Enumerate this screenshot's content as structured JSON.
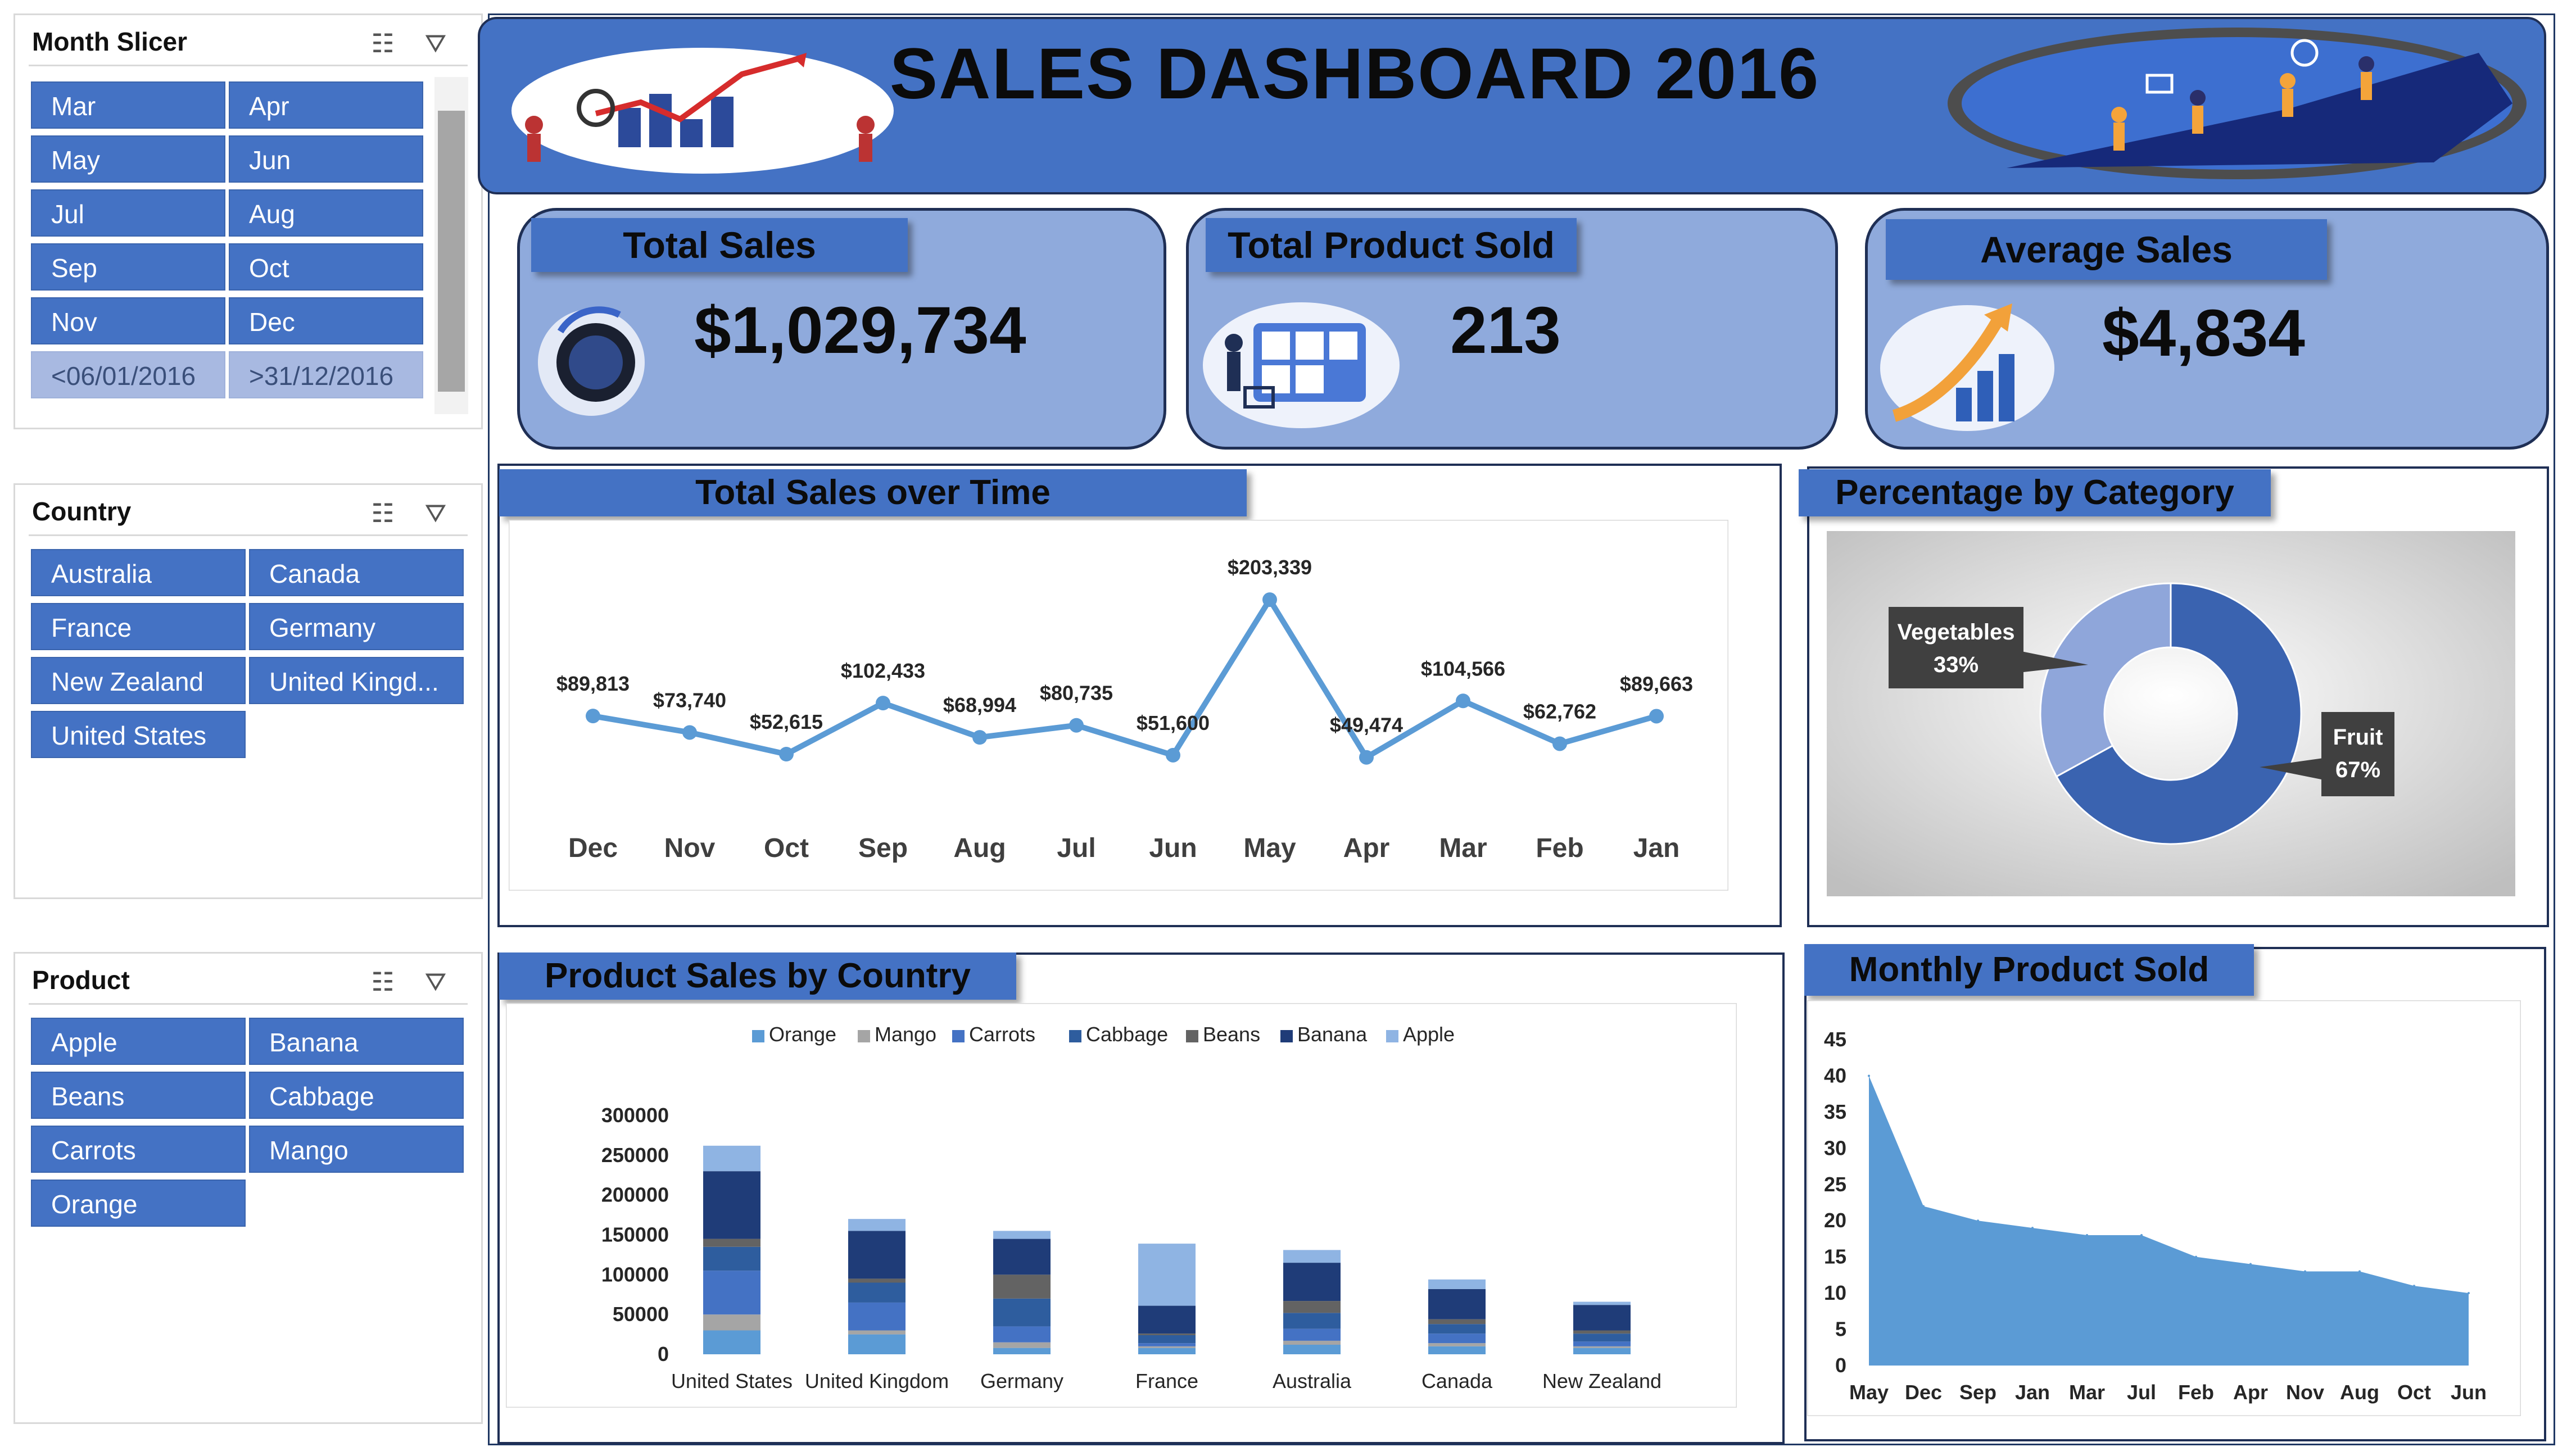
{
  "month_slicer": {
    "title": "Month Slicer",
    "items": [
      "Mar",
      "Apr",
      "May",
      "Jun",
      "Jul",
      "Aug",
      "Sep",
      "Oct",
      "Nov",
      "Dec",
      "<06/01/2016",
      ">31/12/2016"
    ]
  },
  "country_slicer": {
    "title": "Country",
    "items": [
      "Australia",
      "Canada",
      "France",
      "Germany",
      "New Zealand",
      "United Kingd...",
      "United States"
    ]
  },
  "product_slicer": {
    "title": "Product",
    "items": [
      "Apple",
      "Banana",
      "Beans",
      "Cabbage",
      "Carrots",
      "Mango",
      "Orange"
    ]
  },
  "icons": {
    "multiselect": "multi-select-icon",
    "clear_filter": "clear-filter-icon"
  },
  "header": {
    "title": "SALES DASHBOARD 2016"
  },
  "kpis": {
    "total_sales": {
      "label": "Total Sales",
      "value": "$1,029,734"
    },
    "total_product_sold": {
      "label": "Total Product Sold",
      "value": "213"
    },
    "average_sales": {
      "label": "Average Sales",
      "value": "$4,834"
    }
  },
  "colors": {
    "primary": "#4472c4",
    "light": "#8faadc",
    "dark_border": "#1f2f55",
    "line": "#5b9bd5"
  },
  "chart_data": [
    {
      "id": "total_sales_over_time",
      "type": "line",
      "title": "Total Sales over Time",
      "categories": [
        "Dec",
        "Nov",
        "Oct",
        "Sep",
        "Aug",
        "Jul",
        "Jun",
        "May",
        "Apr",
        "Mar",
        "Feb",
        "Jan"
      ],
      "values": [
        89813,
        73740,
        52615,
        102433,
        68994,
        80735,
        51600,
        203339,
        49474,
        104566,
        62762,
        89663
      ],
      "data_labels": [
        "$89,813",
        "$73,740",
        "$52,615",
        "$102,433",
        "$68,994",
        "$80,735",
        "$51,600",
        "$203,339",
        "$49,474",
        "$104,566",
        "$62,762",
        "$89,663"
      ],
      "grid": false
    },
    {
      "id": "percentage_by_category",
      "type": "pie",
      "title": "Percentage by Category",
      "labels": [
        "Fruit",
        "Vegetables"
      ],
      "values": [
        67,
        33
      ],
      "percent_labels": [
        "67%",
        "33%"
      ],
      "colors": [
        "#3a63b0",
        "#8fa6da"
      ]
    },
    {
      "id": "product_sales_by_country",
      "type": "bar",
      "title": "Product Sales by Country",
      "stacked": true,
      "categories": [
        "United States",
        "United Kingdom",
        "Germany",
        "France",
        "Australia",
        "Canada",
        "New Zealand"
      ],
      "legend": "top",
      "ylim": [
        0,
        300000
      ],
      "yticks": [
        "0",
        "50000",
        "100000",
        "150000",
        "200000",
        "250000",
        "300000"
      ],
      "series": [
        {
          "name": "Orange",
          "color": "#5b9bd5",
          "values": [
            30000,
            25000,
            8000,
            8000,
            12000,
            10000,
            8000
          ]
        },
        {
          "name": "Mango",
          "color": "#a5a5a5",
          "values": [
            20000,
            5000,
            7000,
            2000,
            5000,
            4000,
            2000
          ]
        },
        {
          "name": "Carrots",
          "color": "#4472c4",
          "values": [
            55000,
            35000,
            20000,
            4000,
            15000,
            12000,
            6000
          ]
        },
        {
          "name": "Cabbage",
          "color": "#2e5d9e",
          "values": [
            30000,
            25000,
            35000,
            10000,
            20000,
            12000,
            10000
          ]
        },
        {
          "name": "Beans",
          "color": "#636363",
          "values": [
            10000,
            5000,
            30000,
            2000,
            15000,
            6000,
            4000
          ]
        },
        {
          "name": "Banana",
          "color": "#1f3c78",
          "values": [
            85000,
            60000,
            45000,
            35000,
            48000,
            38000,
            32000
          ]
        },
        {
          "name": "Apple",
          "color": "#8fb4e3",
          "values": [
            32000,
            15000,
            10000,
            78000,
            16000,
            12000,
            4000
          ]
        }
      ]
    },
    {
      "id": "monthly_product_sold",
      "type": "area",
      "title": "Monthly Product Sold",
      "categories": [
        "May",
        "Dec",
        "Sep",
        "Jan",
        "Mar",
        "Jul",
        "Feb",
        "Apr",
        "Nov",
        "Aug",
        "Oct",
        "Jun"
      ],
      "values": [
        40,
        22,
        20,
        19,
        18,
        18,
        15,
        14,
        13,
        13,
        11,
        10
      ],
      "ylim": [
        0,
        45
      ],
      "yticks": [
        "0",
        "5",
        "10",
        "15",
        "20",
        "25",
        "30",
        "35",
        "40",
        "45"
      ],
      "color": "#5b9bd5"
    }
  ]
}
